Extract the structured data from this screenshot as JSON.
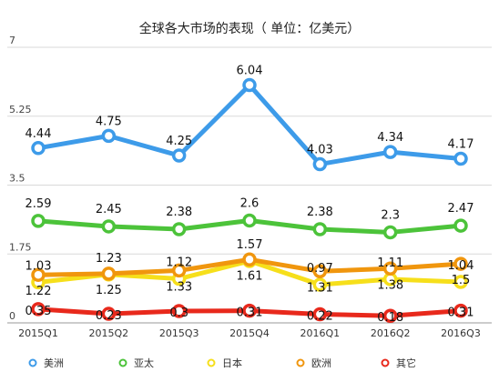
{
  "chart_data": {
    "type": "line",
    "title": "全球各大市场的表现（ 单位：亿美元）",
    "xlabel": "",
    "ylabel": "",
    "categories": [
      "2015Q1",
      "2015Q2",
      "2015Q3",
      "2015Q4",
      "2016Q1",
      "2016Q2",
      "2016Q3"
    ],
    "ylim": [
      0,
      7
    ],
    "yticks": [
      "0",
      "1.75",
      "3.5",
      "5.25",
      "7"
    ],
    "grid": true,
    "legend_position": "bottom",
    "series": [
      {
        "name": "美洲",
        "color": "#3d9be9",
        "values": [
          4.44,
          4.75,
          4.25,
          6.04,
          4.03,
          4.34,
          4.17
        ],
        "labels": [
          "4.44",
          "4.75",
          "4.25",
          "6.04",
          "4.03",
          "4.34",
          "4.17"
        ]
      },
      {
        "name": "亚太",
        "color": "#4cc33a",
        "values": [
          2.59,
          2.45,
          2.38,
          2.6,
          2.38,
          2.3,
          2.47
        ],
        "labels": [
          "2.59",
          "2.45",
          "2.38",
          "2.6",
          "2.38",
          "2.3",
          "2.47"
        ]
      },
      {
        "name": "日本",
        "color": "#f6df1b",
        "values": [
          1.03,
          1.23,
          1.12,
          1.57,
          0.97,
          1.11,
          1.04
        ],
        "labels": [
          "1.03",
          "1.23",
          "1.12",
          "1.57",
          "0.97",
          "1.11",
          "1.04"
        ]
      },
      {
        "name": "欧洲",
        "color": "#f0960e",
        "values": [
          1.22,
          1.25,
          1.33,
          1.61,
          1.31,
          1.38,
          1.5
        ],
        "labels": [
          "1.22",
          "1.25",
          "1.33",
          "1.61",
          "1.31",
          "1.38",
          "1.5"
        ]
      },
      {
        "name": "其它",
        "color": "#e8291c",
        "values": [
          0.35,
          0.23,
          0.3,
          0.31,
          0.22,
          0.18,
          0.31
        ],
        "labels": [
          "0.35",
          "0.23",
          "0.3",
          "0.31",
          "0.22",
          "0.18",
          "0.31"
        ]
      }
    ]
  }
}
